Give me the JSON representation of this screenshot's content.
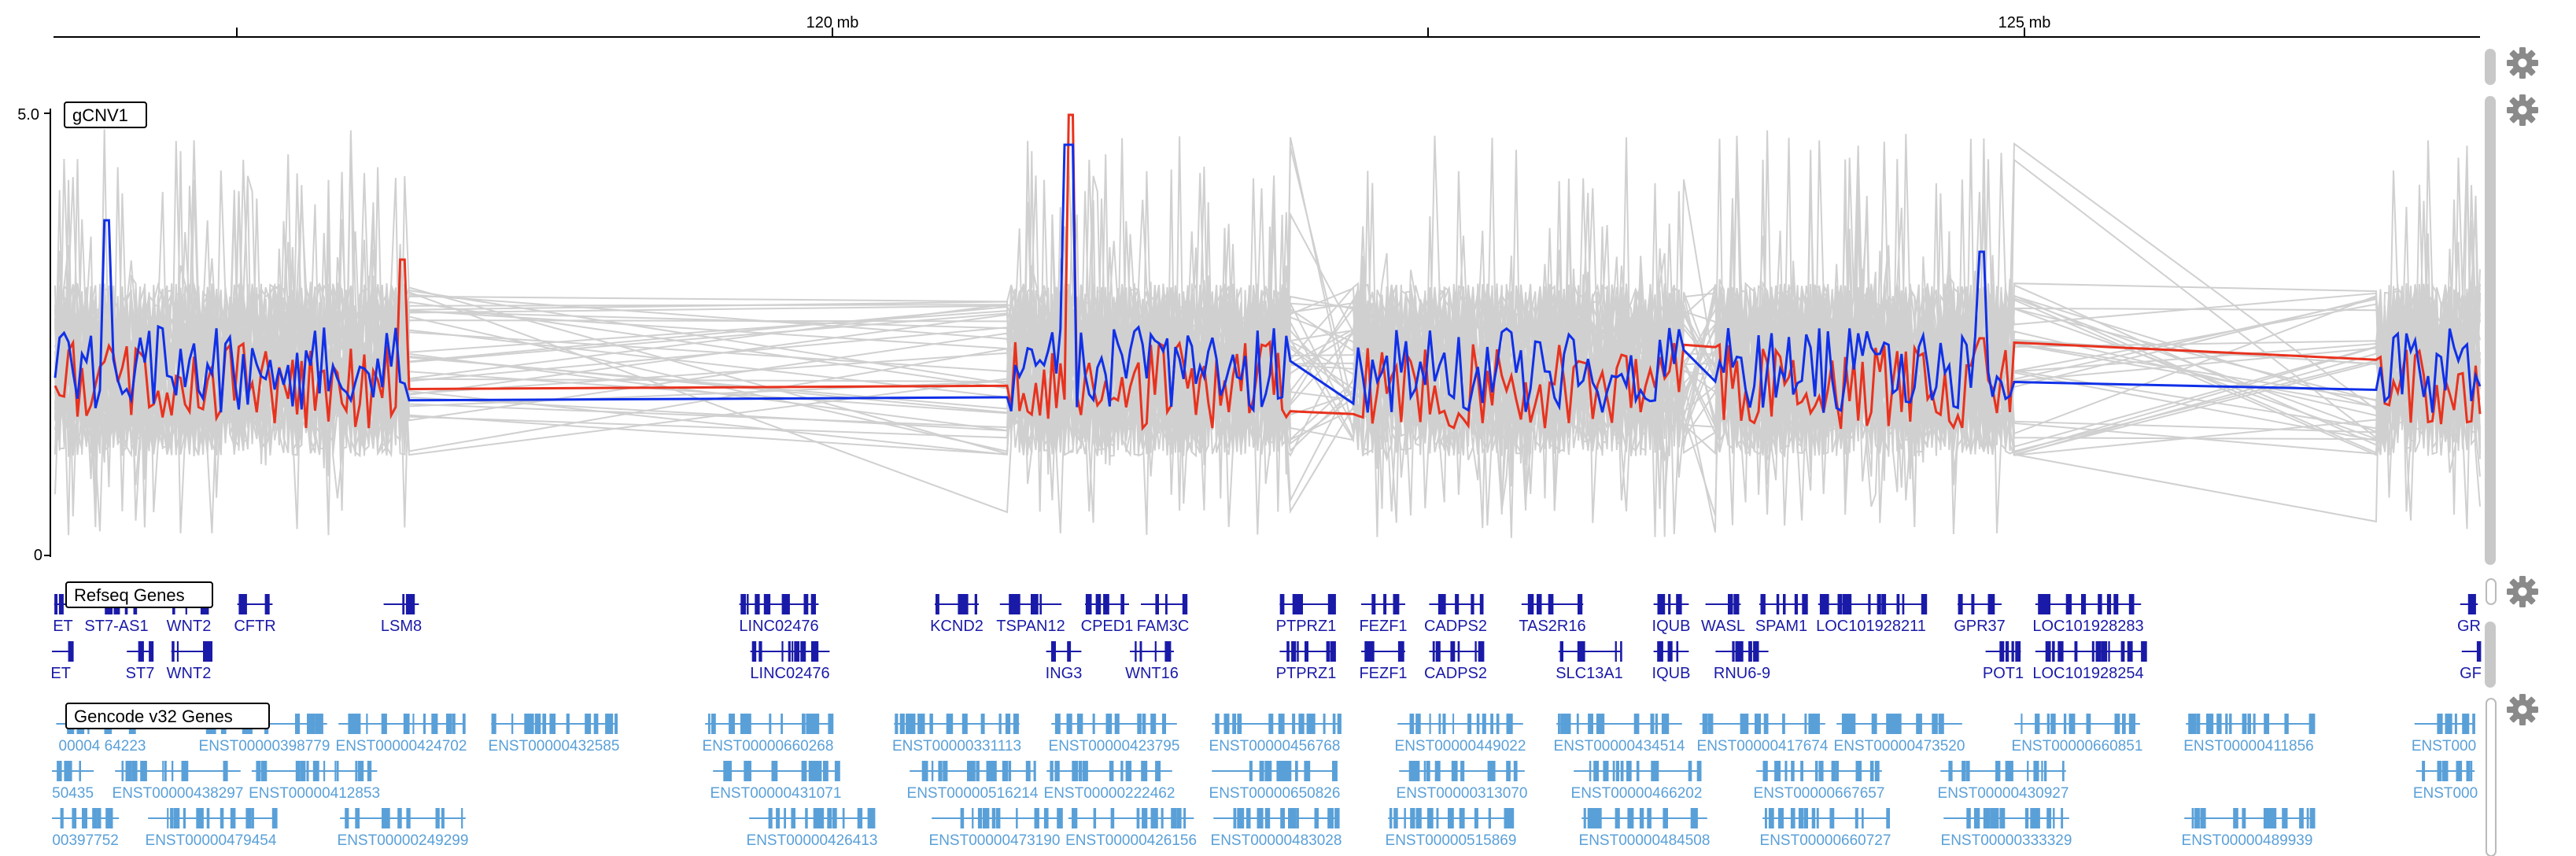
{
  "ruler": {
    "ticks": [
      {
        "label": ""
      },
      {
        "label": "120 mb"
      },
      {
        "label": ""
      },
      {
        "label": "125 mb"
      }
    ]
  },
  "tracks": {
    "gcnv": {
      "label": "gCNV1",
      "y_max_label": "5.0",
      "y_min_label": "0",
      "highlight_colors": {
        "red": "#e8321e",
        "blue": "#1030e8",
        "background": "#d0d0d0"
      }
    },
    "refseq": {
      "label": "Refseq Genes",
      "color": "#1a1aa8",
      "genes": [
        {
          "name": "ET",
          "row": 0
        },
        {
          "name": "ST7-AS1",
          "row": 0
        },
        {
          "name": "WNT2",
          "row": 0
        },
        {
          "name": "CFTR",
          "row": 0
        },
        {
          "name": "LSM8",
          "row": 0
        },
        {
          "name": "LINC02476",
          "row": 0
        },
        {
          "name": "KCND2",
          "row": 0
        },
        {
          "name": "TSPAN12",
          "row": 0
        },
        {
          "name": "CPED1",
          "row": 0
        },
        {
          "name": "FAM3C",
          "row": 0
        },
        {
          "name": "PTPRZ1",
          "row": 0
        },
        {
          "name": "FEZF1",
          "row": 0
        },
        {
          "name": "CADPS2",
          "row": 0
        },
        {
          "name": "TAS2R16",
          "row": 0
        },
        {
          "name": "IQUB",
          "row": 0
        },
        {
          "name": "WASL",
          "row": 0
        },
        {
          "name": "SPAM1",
          "row": 0
        },
        {
          "name": "LOC101928211",
          "row": 0
        },
        {
          "name": "GPR37",
          "row": 0
        },
        {
          "name": "LOC101928283",
          "row": 0
        },
        {
          "name": "GR",
          "row": 0
        },
        {
          "name": "ET",
          "row": 1
        },
        {
          "name": "ST7",
          "row": 1
        },
        {
          "name": "WNT2",
          "row": 1
        },
        {
          "name": "LINC02476",
          "row": 1
        },
        {
          "name": "ING3",
          "row": 1
        },
        {
          "name": "WNT16",
          "row": 1
        },
        {
          "name": "PTPRZ1",
          "row": 1
        },
        {
          "name": "FEZF1",
          "row": 1
        },
        {
          "name": "CADPS2",
          "row": 1
        },
        {
          "name": "SLC13A1",
          "row": 1
        },
        {
          "name": "IQUB",
          "row": 1
        },
        {
          "name": "RNU6-9",
          "row": 1
        },
        {
          "name": "POT1",
          "row": 1
        },
        {
          "name": "LOC101928254",
          "row": 1
        },
        {
          "name": "GF",
          "row": 1
        }
      ]
    },
    "gencode": {
      "label": "Gencode v32 Genes",
      "color": "#5aa0d8",
      "genes": [
        {
          "name": "00004 64223",
          "row": 0
        },
        {
          "name": "ENST00000398779",
          "row": 0
        },
        {
          "name": "ENST00000424702",
          "row": 0
        },
        {
          "name": "ENST00000432585",
          "row": 0
        },
        {
          "name": "ENST00000660268",
          "row": 0
        },
        {
          "name": "ENST00000331113",
          "row": 0
        },
        {
          "name": "ENST00000423795",
          "row": 0
        },
        {
          "name": "ENST00000456768",
          "row": 0
        },
        {
          "name": "ENST00000449022",
          "row": 0
        },
        {
          "name": "ENST00000434514",
          "row": 0
        },
        {
          "name": "ENST00000417674",
          "row": 0
        },
        {
          "name": "ENST00000473520",
          "row": 0
        },
        {
          "name": "ENST00000660851",
          "row": 0
        },
        {
          "name": "ENST00000411856",
          "row": 0
        },
        {
          "name": "ENST000",
          "row": 0
        },
        {
          "name": "50435",
          "row": 1
        },
        {
          "name": "ENST00000438297",
          "row": 1
        },
        {
          "name": "ENST00000412853",
          "row": 1
        },
        {
          "name": "ENST00000431071",
          "row": 1
        },
        {
          "name": "ENST00000516214",
          "row": 1
        },
        {
          "name": "ENST00000222462",
          "row": 1
        },
        {
          "name": "ENST00000650826",
          "row": 1
        },
        {
          "name": "ENST00000313070",
          "row": 1
        },
        {
          "name": "ENST00000466202",
          "row": 1
        },
        {
          "name": "ENST00000667657",
          "row": 1
        },
        {
          "name": "ENST00000430927",
          "row": 1
        },
        {
          "name": "ENST000",
          "row": 1
        },
        {
          "name": "00397752",
          "row": 2
        },
        {
          "name": "ENST00000479454",
          "row": 2
        },
        {
          "name": "ENST00000249299",
          "row": 2
        },
        {
          "name": "ENST00000426413",
          "row": 2
        },
        {
          "name": "ENST00000473190",
          "row": 2
        },
        {
          "name": "ENST00000426156",
          "row": 2
        },
        {
          "name": "ENST00000483028",
          "row": 2
        },
        {
          "name": "ENST00000515869",
          "row": 2
        },
        {
          "name": "ENST00000484508",
          "row": 2
        },
        {
          "name": "ENST00000660727",
          "row": 2
        },
        {
          "name": "ENST00000333329",
          "row": 2
        },
        {
          "name": "ENST00000489939",
          "row": 2
        }
      ]
    }
  },
  "controls": {
    "settings_icon": "gear-icon"
  }
}
